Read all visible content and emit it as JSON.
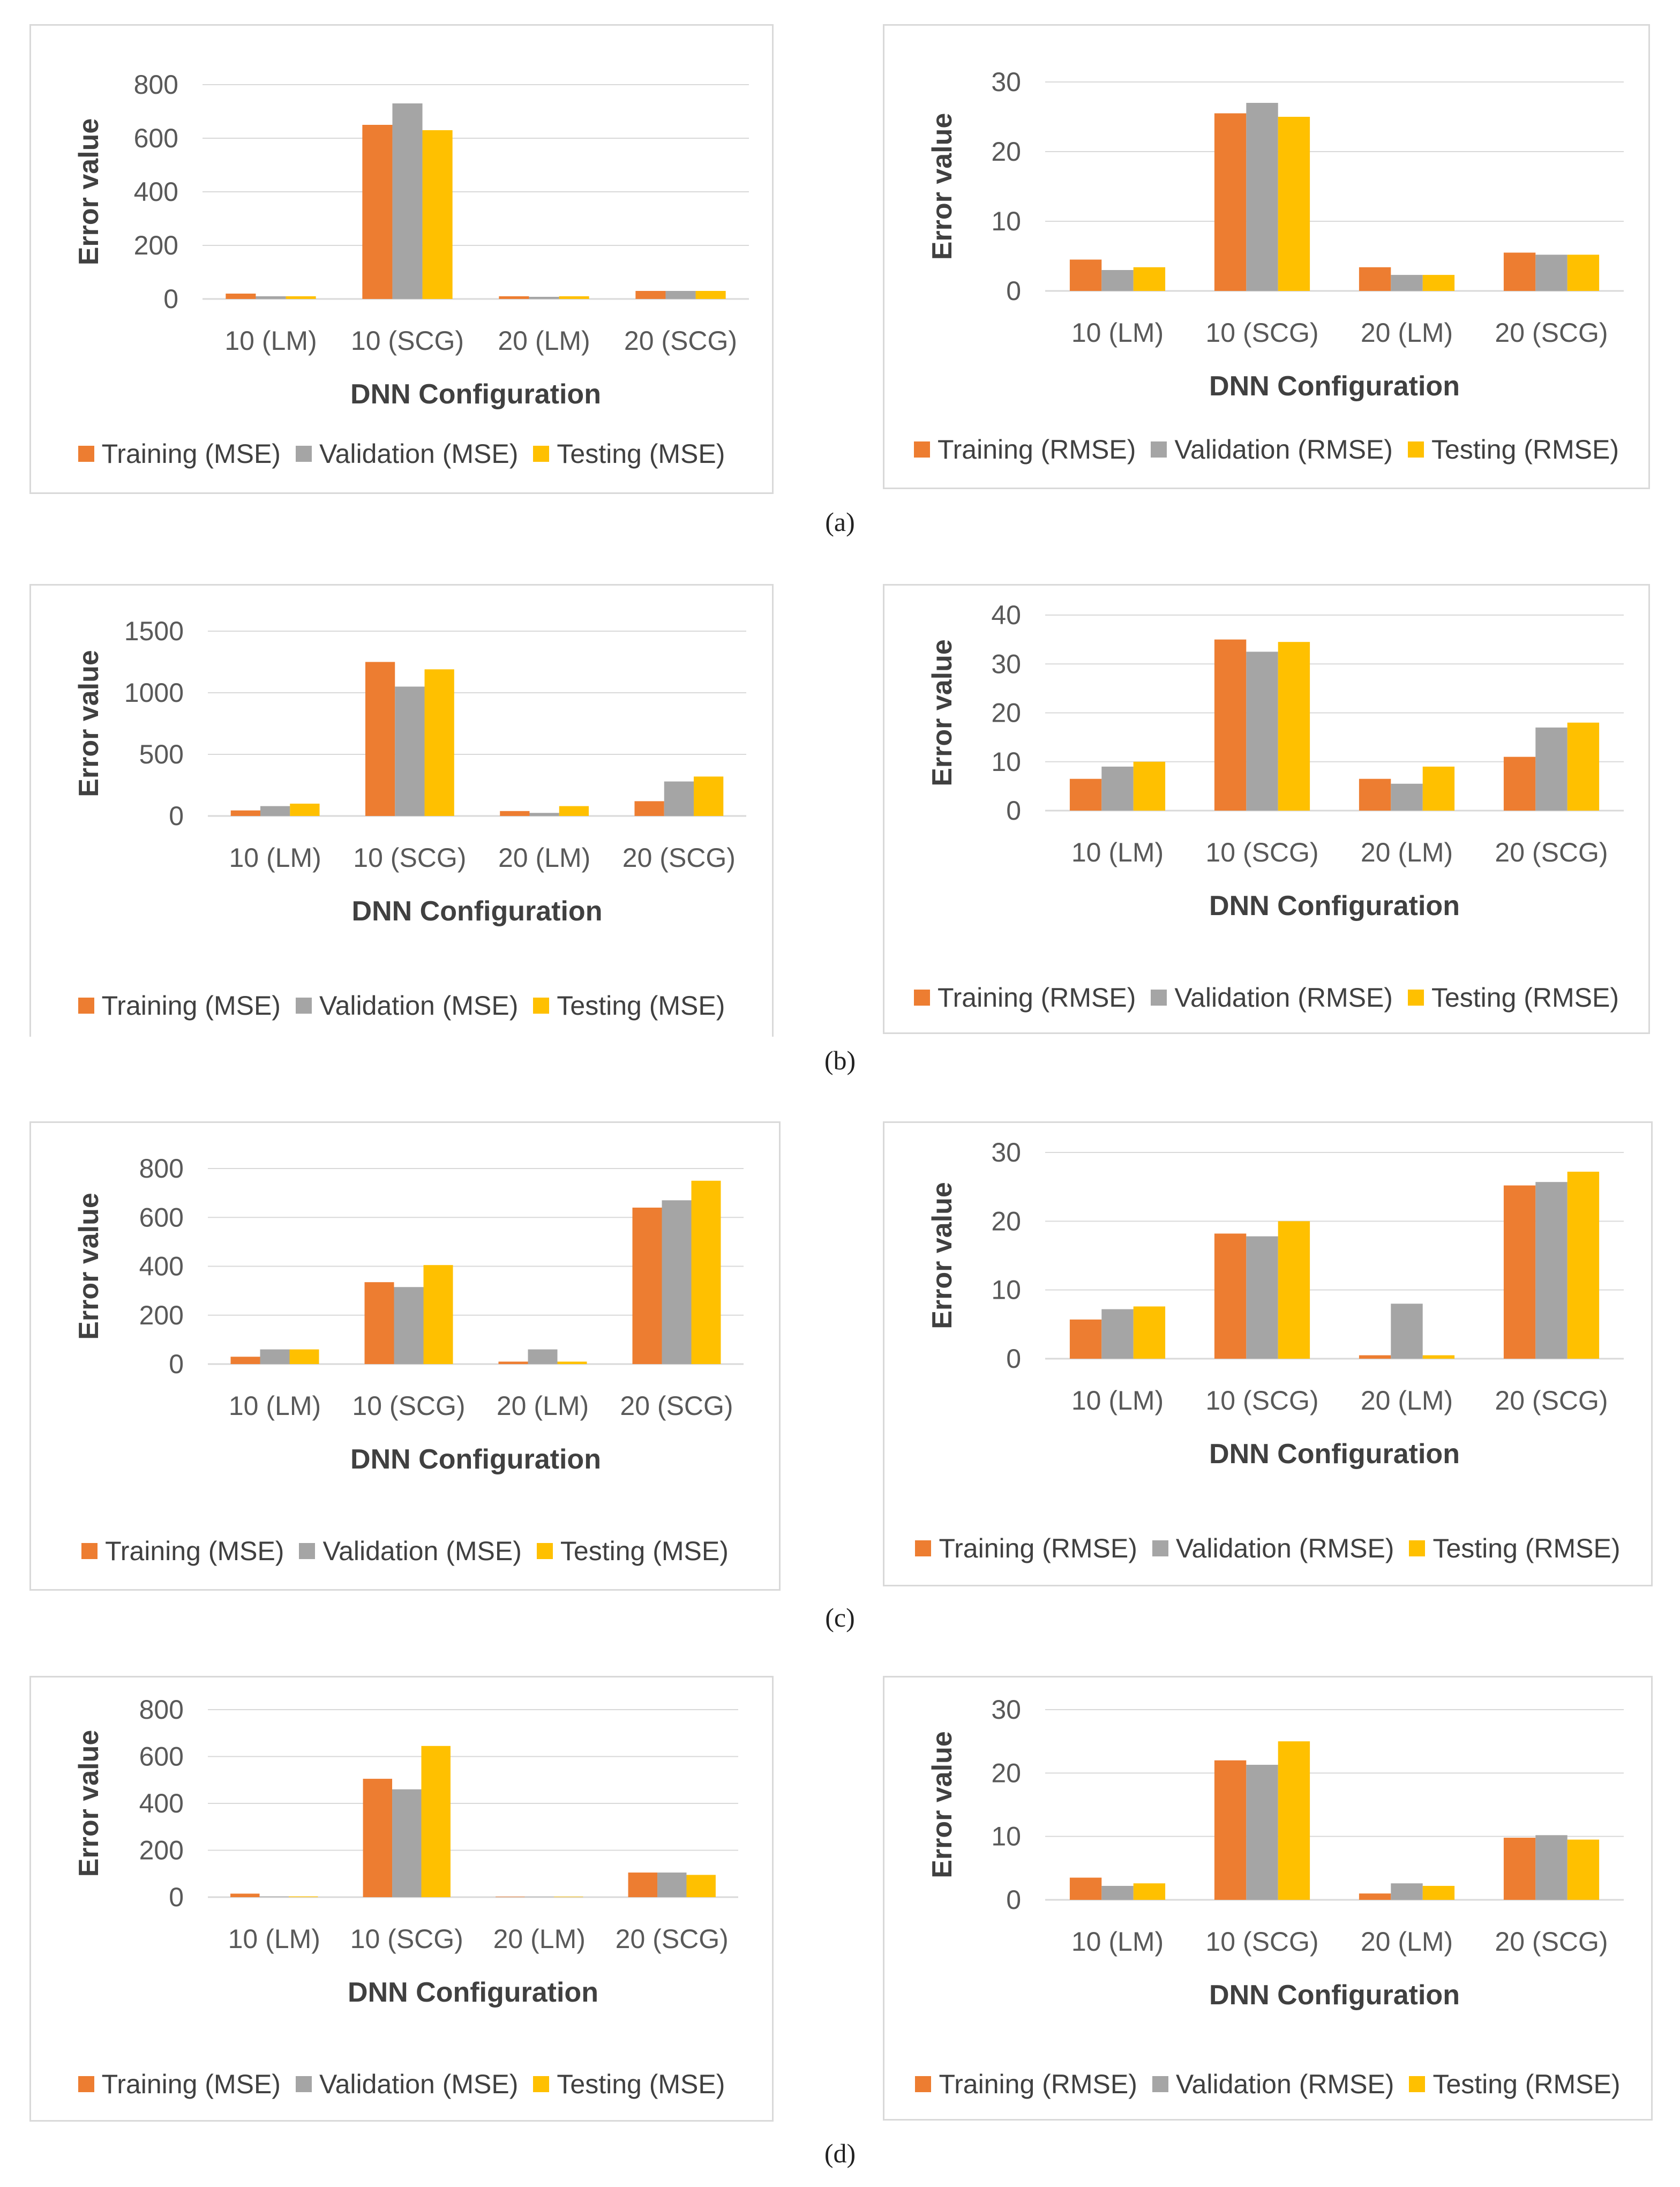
{
  "colors": {
    "training": "#ED7D31",
    "validation": "#A5A5A5",
    "testing": "#FFC000",
    "grid": "#d9d9d9"
  },
  "chart_data": [
    {
      "id": "a-mse",
      "type": "bar",
      "categories": [
        "10 (LM)",
        "10 (SCG)",
        "20 (LM)",
        "20 (SCG)"
      ],
      "series": [
        {
          "name": "Training (MSE)",
          "values": [
            20,
            650,
            10,
            30
          ]
        },
        {
          "name": "Validation (MSE)",
          "values": [
            10,
            730,
            8,
            30
          ]
        },
        {
          "name": "Testing (MSE)",
          "values": [
            10,
            630,
            10,
            30
          ]
        }
      ],
      "yticks": [
        "0",
        "200",
        "400",
        "600",
        "800"
      ],
      "ylim": [
        0,
        800
      ],
      "xlabel": "DNN Configuration",
      "ylabel": "Error value"
    },
    {
      "id": "a-rmse",
      "type": "bar",
      "categories": [
        "10 (LM)",
        "10 (SCG)",
        "20 (LM)",
        "20 (SCG)"
      ],
      "series": [
        {
          "name": "Training (RMSE)",
          "values": [
            4.5,
            25.5,
            3.4,
            5.5
          ]
        },
        {
          "name": "Validation (RMSE)",
          "values": [
            3,
            27,
            2.3,
            5.2
          ]
        },
        {
          "name": "Testing (RMSE)",
          "values": [
            3.4,
            25,
            2.3,
            5.2
          ]
        }
      ],
      "yticks": [
        "0",
        "10",
        "20",
        "30"
      ],
      "ylim": [
        0,
        30
      ],
      "xlabel": "DNN Configuration",
      "ylabel": "Error value"
    },
    {
      "id": "b-mse",
      "type": "bar",
      "categories": [
        "10 (LM)",
        "10 (SCG)",
        "20 (LM)",
        "20 (SCG)"
      ],
      "series": [
        {
          "name": "Training (MSE)",
          "values": [
            45,
            1250,
            40,
            120
          ]
        },
        {
          "name": "Validation (MSE)",
          "values": [
            80,
            1050,
            25,
            280
          ]
        },
        {
          "name": "Testing (MSE)",
          "values": [
            100,
            1190,
            80,
            320
          ]
        }
      ],
      "yticks": [
        "0",
        "500",
        "1000",
        "1500"
      ],
      "ylim": [
        0,
        1500
      ],
      "xlabel": "DNN Configuration",
      "ylabel": "Error value"
    },
    {
      "id": "b-rmse",
      "type": "bar",
      "categories": [
        "10 (LM)",
        "10 (SCG)",
        "20 (LM)",
        "20 (SCG)"
      ],
      "series": [
        {
          "name": "Training (RMSE)",
          "values": [
            6.5,
            35,
            6.5,
            11
          ]
        },
        {
          "name": "Validation (RMSE)",
          "values": [
            9,
            32.5,
            5.5,
            17
          ]
        },
        {
          "name": "Testing (RMSE)",
          "values": [
            10,
            34.5,
            9,
            18
          ]
        }
      ],
      "yticks": [
        "0",
        "10",
        "20",
        "30",
        "40"
      ],
      "ylim": [
        0,
        40
      ],
      "xlabel": "DNN Configuration",
      "ylabel": "Error value"
    },
    {
      "id": "c-mse",
      "type": "bar",
      "categories": [
        "10 (LM)",
        "10 (SCG)",
        "20 (LM)",
        "20 (SCG)"
      ],
      "series": [
        {
          "name": "Training (MSE)",
          "values": [
            30,
            335,
            10,
            640
          ]
        },
        {
          "name": "Validation (MSE)",
          "values": [
            60,
            315,
            60,
            670
          ]
        },
        {
          "name": "Testing (MSE)",
          "values": [
            60,
            405,
            10,
            750
          ]
        }
      ],
      "yticks": [
        "0",
        "200",
        "400",
        "600",
        "800"
      ],
      "ylim": [
        0,
        800
      ],
      "xlabel": "DNN Configuration",
      "ylabel": "Error value"
    },
    {
      "id": "c-rmse",
      "type": "bar",
      "categories": [
        "10 (LM)",
        "10 (SCG)",
        "20 (LM)",
        "20 (SCG)"
      ],
      "series": [
        {
          "name": "Training (RMSE)",
          "values": [
            5.7,
            18.2,
            0.5,
            25.2
          ]
        },
        {
          "name": "Validation (RMSE)",
          "values": [
            7.2,
            17.8,
            8,
            25.7
          ]
        },
        {
          "name": "Testing (RMSE)",
          "values": [
            7.6,
            20,
            0.5,
            27.2
          ]
        }
      ],
      "yticks": [
        "0",
        "10",
        "20",
        "30"
      ],
      "ylim": [
        0,
        30
      ],
      "xlabel": "DNN Configuration",
      "ylabel": "Error value"
    },
    {
      "id": "d-mse",
      "type": "bar",
      "categories": [
        "10 (LM)",
        "10 (SCG)",
        "20 (LM)",
        "20 (SCG)"
      ],
      "series": [
        {
          "name": "Training (MSE)",
          "values": [
            15,
            505,
            2,
            105
          ]
        },
        {
          "name": "Validation (MSE)",
          "values": [
            3,
            460,
            2,
            105
          ]
        },
        {
          "name": "Testing (MSE)",
          "values": [
            3,
            645,
            2,
            95
          ]
        }
      ],
      "yticks": [
        "0",
        "200",
        "400",
        "600",
        "800"
      ],
      "ylim": [
        0,
        800
      ],
      "xlabel": "DNN Configuration",
      "ylabel": "Error value"
    },
    {
      "id": "d-rmse",
      "type": "bar",
      "categories": [
        "10 (LM)",
        "10 (SCG)",
        "20 (LM)",
        "20 (SCG)"
      ],
      "series": [
        {
          "name": "Training (RMSE)",
          "values": [
            3.5,
            22,
            1,
            9.8
          ]
        },
        {
          "name": "Validation (RMSE)",
          "values": [
            2.2,
            21.3,
            2.6,
            10.2
          ]
        },
        {
          "name": "Testing (RMSE)",
          "values": [
            2.6,
            25,
            2.2,
            9.5
          ]
        }
      ],
      "yticks": [
        "0",
        "10",
        "20",
        "30"
      ],
      "ylim": [
        0,
        30
      ],
      "xlabel": "DNN Configuration",
      "ylabel": "Error value"
    }
  ],
  "captions": [
    "(a)",
    "(b)",
    "(c)",
    "(d)"
  ]
}
